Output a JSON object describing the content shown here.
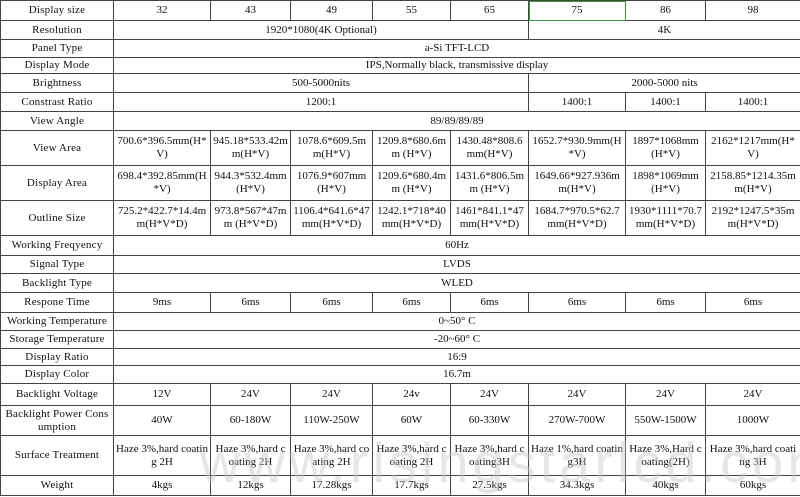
{
  "sizes": [
    "32",
    "43",
    "49",
    "55",
    "65",
    "75",
    "86",
    "98"
  ],
  "labels": {
    "size": "Display  size",
    "resolution": "Resolution",
    "panel": "Panel Type",
    "mode": "Display Mode",
    "brightness": "Brightness",
    "contrast": "Constrast Ratio",
    "angle": "View Angle",
    "view_area": "View Area",
    "display_area": "Display Area",
    "outline": "Outline Size",
    "freq": "Working Freqyency",
    "signal": "Signal Type",
    "backlight": "Backlight Type",
    "response": "Respone Time",
    "work_temp": "Working Temperature",
    "storage_temp": "Storage Temperature",
    "ratio": "Display Ratio",
    "color": "Display Color",
    "voltage": "Backlight Voltage",
    "power": "Backlight Power Consumption",
    "surface": "Surface Treatment",
    "weight": "Weight"
  },
  "resolution": {
    "low": "1920*1080(4K Optional)",
    "high": "4K"
  },
  "panel": "a-Si TFT-LCD",
  "mode": "IPS,Normally black, transmissive display",
  "brightness": {
    "low": "500-5000nits",
    "high": "2000-5000 nits"
  },
  "contrast": {
    "low": "1200:1",
    "high": [
      "1400:1",
      "1400:1",
      "1400:1"
    ]
  },
  "angle": "89/89/89/89",
  "view_area": [
    "700.6*396.5mm(H*V)",
    "945.18*533.42mm(H*V)",
    "1078.6*609.5mm(H*V)",
    "1209.8*680.6mm (H*V)",
    "1430.48*808.6mm(H*V)",
    "1652.7*930.9mm(H*V)",
    "1897*1068mm(H*V)",
    "2162*1217mm(H*V)"
  ],
  "display_area": [
    "698.4*392.85mm(H*V)",
    "944.3*532.4mm(H*V)",
    "1076.9*607mm(H*V)",
    "1209.6*680.4mm (H*V)",
    "1431.6*806.5mm (H*V)",
    "1649.66*927.936mm(H*V)",
    "1898*1069mm(H*V)",
    "2158.85*1214.35mm(H*V)"
  ],
  "outline": [
    "725.2*422.7*14.4mm(H*V*D)",
    "973.8*567*47mm (H*V*D)",
    "1106.4*641.6*47mm(H*V*D)",
    "1242.1*718*40mm(H*V*D)",
    "1461*841.1*47mm(H*V*D)",
    "1684.7*970.5*62.7mm(H*V*D)",
    "1930*1111*70.7mm(H*V*D)",
    "2192*1247.5*35mm(H*V*D)"
  ],
  "freq": "60Hz",
  "signal": "LVDS",
  "backlight": "WLED",
  "response": [
    "9ms",
    "6ms",
    "6ms",
    "6ms",
    "6ms",
    "6ms",
    "6ms",
    "6ms"
  ],
  "work_temp": "0~50° C",
  "storage_temp": "-20~60° C",
  "ratio": "16:9",
  "color": "16.7m",
  "voltage": [
    "12V",
    "24V",
    "24V",
    "24v",
    "24V",
    "24V",
    "24V",
    "24V"
  ],
  "power": [
    "40W",
    "60-180W",
    "110W-250W",
    "60W",
    "60-330W",
    "270W-700W",
    "550W-1500W",
    "1000W"
  ],
  "surface": [
    "Haze 3%,hard coating 2H",
    "Haze 3%,hard coating 2H",
    "Haze 3%,hard coating 2H",
    "Haze 3%,hard coating 2H",
    "Haze 3%,hard coating3H",
    "Haze 1%,hard coating3H",
    "Haze 3%,Hard coating(2H)",
    "Haze 3%,hard coating 3H"
  ],
  "weight": [
    "4kgs",
    "12kgs",
    "17.28kgs",
    "17.7kgs",
    "27.5kgs",
    "34.3kgs",
    "40kgs",
    "60kgs"
  ],
  "watermark": "www.risingstarlcd.com"
}
